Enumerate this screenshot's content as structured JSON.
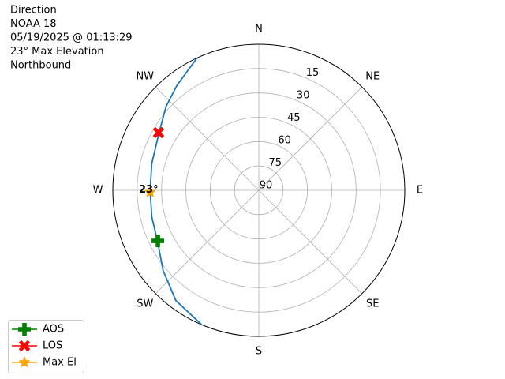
{
  "chart_data": {
    "type": "polar",
    "title_lines": [
      "Direction",
      "NOAA 18",
      "05/19/2025 @ 01:13:29",
      "23° Max Elevation",
      "Northbound"
    ],
    "xlim": [
      0,
      360
    ],
    "xticks": [
      {
        "value": 0,
        "label": "N"
      },
      {
        "value": 45,
        "label": "NE"
      },
      {
        "value": 90,
        "label": "E"
      },
      {
        "value": 135,
        "label": "SE"
      },
      {
        "value": 180,
        "label": "S"
      },
      {
        "value": 225,
        "label": "SW"
      },
      {
        "value": 270,
        "label": "W"
      },
      {
        "value": 315,
        "label": "NW"
      }
    ],
    "ylim": [
      90,
      0
    ],
    "yticks": [
      15,
      30,
      45,
      60,
      75,
      90
    ],
    "grid": true,
    "legend": "lower left",
    "series": [
      {
        "color": "#1f77b4",
        "marker": "none",
        "x": [
          203,
          217,
          230,
          243,
          256,
          270,
          284,
          300,
          312,
          322,
          335
        ],
        "values": [
          0,
          5,
          13,
          20,
          22,
          23,
          22,
          19,
          13,
          8,
          0
        ]
      },
      {
        "name": "AOS",
        "color": "#008000",
        "marker": "plus",
        "x": [
          243.4
        ],
        "values": [
          20.4
        ]
      },
      {
        "name": "LOS",
        "color": "#ff0000",
        "marker": "x",
        "x": [
          299.9
        ],
        "values": [
          18.7
        ]
      },
      {
        "name": "Max El",
        "color": "#ffa500",
        "marker": "star",
        "x": [
          269
        ],
        "values": [
          23
        ]
      }
    ],
    "annotations": [
      {
        "text": "23°"
      }
    ]
  }
}
